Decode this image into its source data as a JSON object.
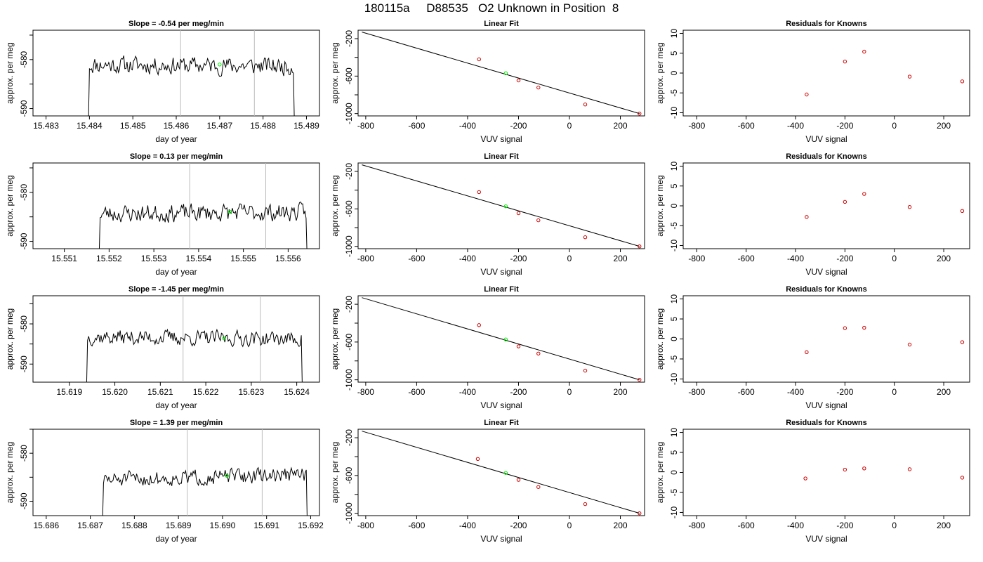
{
  "title": "180115a     D88535   O2 Unknown in Position  8",
  "colors": {
    "trace": "#000000",
    "unknown_point": "#00ee00",
    "known_point": "#cc0000",
    "session_marker": "#bbbbbb",
    "axis": "#000000"
  },
  "chart_data": [
    {
      "type": "line",
      "row": 0,
      "title": "Slope =  -0.54  per meg/min",
      "xlabel": "day of year",
      "ylabel": "approx. per meg",
      "xlim": [
        15.4827,
        15.4893
      ],
      "ylim": [
        -591.5,
        -574.0
      ],
      "xticks": [
        "15.483",
        "15.484",
        "15.485",
        "15.486",
        "15.487",
        "15.488",
        "15.489"
      ],
      "yticks": [
        "-580",
        "-590"
      ],
      "ytick_values": [
        -580,
        -590
      ],
      "trace_start": 15.484,
      "trace_end": 15.4887,
      "trace_level": -581.2,
      "trace_noise": 1.6,
      "trace_trend": -0.3,
      "seed": 11,
      "vlines": [
        15.4861,
        15.4878
      ],
      "unknown_point": {
        "x": 15.487,
        "y": -581.0
      }
    },
    {
      "type": "line",
      "row": 1,
      "title": "Slope =  0.13  per meg/min",
      "xlabel": "day of year",
      "ylabel": "approx. per meg",
      "xlim": [
        15.5503,
        15.5567
      ],
      "ylim": [
        -591.5,
        -574.0
      ],
      "xticks": [
        "15.551",
        "15.552",
        "15.553",
        "15.554",
        "15.555",
        "15.556"
      ],
      "yticks": [
        "-580",
        "-590"
      ],
      "ytick_values": [
        -580,
        -590
      ],
      "trace_start": 15.5518,
      "trace_end": 15.5564,
      "trace_level": -584.2,
      "trace_noise": 1.6,
      "trace_trend": 0.3,
      "seed": 23,
      "vlines": [
        15.5538,
        15.5555
      ],
      "unknown_point": {
        "x": 15.5547,
        "y": -584.0
      }
    },
    {
      "type": "line",
      "row": 2,
      "title": "Slope =  -1.45  per meg/min",
      "xlabel": "day of year",
      "ylabel": "approx. per meg",
      "xlim": [
        15.6182,
        15.6245
      ],
      "ylim": [
        -594.5,
        -573.0
      ],
      "xticks": [
        "15.619",
        "15.620",
        "15.621",
        "15.622",
        "15.623",
        "15.624"
      ],
      "yticks": [
        "-580",
        "-590"
      ],
      "ytick_values": [
        -580,
        -590
      ],
      "trace_start": 15.6194,
      "trace_end": 15.6241,
      "trace_level": -583.5,
      "trace_noise": 1.7,
      "trace_trend": -0.5,
      "seed": 37,
      "vlines": [
        15.6215,
        15.6232
      ],
      "unknown_point": {
        "x": 15.6224,
        "y": -583.6
      }
    },
    {
      "type": "line",
      "row": 3,
      "title": "Slope =  1.39  per meg/min",
      "xlabel": "day of year",
      "ylabel": "approx. per meg",
      "xlim": [
        15.6857,
        15.6922
      ],
      "ylim": [
        -593.0,
        -575.0
      ],
      "xticks": [
        "15.686",
        "15.687",
        "15.688",
        "15.689",
        "15.690",
        "15.691",
        "15.692"
      ],
      "yticks": [
        "-580",
        "-590"
      ],
      "ytick_values": [
        -580,
        -590
      ],
      "trace_start": 15.6873,
      "trace_end": 15.6919,
      "trace_level": -585.0,
      "trace_noise": 1.4,
      "trace_trend": 1.2,
      "seed": 51,
      "vlines": [
        15.6892,
        15.6909
      ],
      "unknown_point": {
        "x": 15.6901,
        "y": -584.7
      }
    },
    {
      "type": "scatter",
      "row": 0,
      "title": "Linear Fit",
      "xlabel": "VUV signal",
      "ylabel": "approx. per meg",
      "xlim": [
        -830,
        295
      ],
      "ylim": [
        -1025,
        -110
      ],
      "xticks": [
        "-800",
        "-600",
        "-400",
        "-200",
        "0",
        "200"
      ],
      "xtick_values": [
        -800,
        -600,
        -400,
        -200,
        0,
        200
      ],
      "yticks": [
        "-200",
        "-600",
        "-1000"
      ],
      "ytick_values": [
        -200,
        -600,
        -1000
      ],
      "fit_line": {
        "x": [
          -815,
          275
        ],
        "y": [
          -130,
          -1000
        ]
      },
      "known_points": {
        "x": [
          -355,
          -200,
          -122,
          62,
          275
        ],
        "y": [
          -421,
          -646,
          -722,
          -903,
          -1000
        ]
      },
      "unknown_point": {
        "x": -250,
        "y": -569
      }
    },
    {
      "type": "scatter",
      "row": 1,
      "title": "Linear Fit",
      "xlabel": "VUV signal",
      "ylabel": "approx. per meg",
      "xlim": [
        -830,
        295
      ],
      "ylim": [
        -1025,
        -110
      ],
      "xticks": [
        "-800",
        "-600",
        "-400",
        "-200",
        "0",
        "200"
      ],
      "xtick_values": [
        -800,
        -600,
        -400,
        -200,
        0,
        200
      ],
      "yticks": [
        "-200",
        "-600",
        "-1000"
      ],
      "ytick_values": [
        -200,
        -600,
        -1000
      ],
      "fit_line": {
        "x": [
          -815,
          275
        ],
        "y": [
          -130,
          -1000
        ]
      },
      "known_points": {
        "x": [
          -355,
          -200,
          -122,
          62,
          275
        ],
        "y": [
          -421,
          -646,
          -722,
          -903,
          -1000
        ]
      },
      "unknown_point": {
        "x": -250,
        "y": -573
      }
    },
    {
      "type": "scatter",
      "row": 2,
      "title": "Linear Fit",
      "xlabel": "VUV signal",
      "ylabel": "approx. per meg",
      "xlim": [
        -830,
        295
      ],
      "ylim": [
        -1025,
        -110
      ],
      "xticks": [
        "-800",
        "-600",
        "-400",
        "-200",
        "0",
        "200"
      ],
      "xtick_values": [
        -800,
        -600,
        -400,
        -200,
        0,
        200
      ],
      "yticks": [
        "-200",
        "-600",
        "-1000"
      ],
      "ytick_values": [
        -200,
        -600,
        -1000
      ],
      "fit_line": {
        "x": [
          -815,
          275
        ],
        "y": [
          -130,
          -1000
        ]
      },
      "known_points": {
        "x": [
          -355,
          -200,
          -122,
          62,
          275
        ],
        "y": [
          -421,
          -646,
          -722,
          -903,
          -1000
        ]
      },
      "unknown_point": {
        "x": -250,
        "y": -573
      }
    },
    {
      "type": "scatter",
      "row": 3,
      "title": "Linear Fit",
      "xlabel": "VUV signal",
      "ylabel": "approx. per meg",
      "xlim": [
        -830,
        295
      ],
      "ylim": [
        -1025,
        -110
      ],
      "xticks": [
        "-800",
        "-600",
        "-400",
        "-200",
        "0",
        "200"
      ],
      "xtick_values": [
        -800,
        -600,
        -400,
        -200,
        0,
        200
      ],
      "yticks": [
        "-200",
        "-600",
        "-1000"
      ],
      "ytick_values": [
        -200,
        -600,
        -1000
      ],
      "fit_line": {
        "x": [
          -815,
          275
        ],
        "y": [
          -130,
          -1000
        ]
      },
      "known_points": {
        "x": [
          -360,
          -200,
          -122,
          62,
          275
        ],
        "y": [
          -425,
          -646,
          -722,
          -903,
          -1000
        ]
      },
      "unknown_point": {
        "x": -250,
        "y": -573
      }
    },
    {
      "type": "scatter",
      "row": 0,
      "title": "Residuals for Knowns",
      "xlabel": "VUV signal",
      "ylabel": "approx. per meg",
      "xlim": [
        -855,
        305
      ],
      "ylim": [
        -10.8,
        10.8
      ],
      "xticks": [
        "-800",
        "-600",
        "-400",
        "-200",
        "0",
        "200"
      ],
      "xtick_values": [
        -800,
        -600,
        -400,
        -200,
        0,
        200
      ],
      "yticks": [
        "-10",
        "-5",
        "0",
        "5",
        "10"
      ],
      "ytick_values": [
        -10,
        -5,
        0,
        5,
        10
      ],
      "points": {
        "x": [
          -355,
          -200,
          -122,
          62,
          275
        ],
        "y": [
          -5.4,
          2.9,
          5.4,
          -0.9,
          -2.1
        ]
      }
    },
    {
      "type": "scatter",
      "row": 1,
      "title": "Residuals for Knowns",
      "xlabel": "VUV signal",
      "ylabel": "approx. per meg",
      "xlim": [
        -855,
        305
      ],
      "ylim": [
        -10.8,
        10.8
      ],
      "xticks": [
        "-800",
        "-600",
        "-400",
        "-200",
        "0",
        "200"
      ],
      "xtick_values": [
        -800,
        -600,
        -400,
        -200,
        0,
        200
      ],
      "yticks": [
        "-10",
        "-5",
        "0",
        "5",
        "10"
      ],
      "ytick_values": [
        -10,
        -5,
        0,
        5,
        10
      ],
      "points": {
        "x": [
          -355,
          -200,
          -122,
          62,
          275
        ],
        "y": [
          -2.8,
          1.0,
          3.0,
          -0.3,
          -1.3
        ]
      }
    },
    {
      "type": "scatter",
      "row": 2,
      "title": "Residuals for Knowns",
      "xlabel": "VUV signal",
      "ylabel": "approx. per meg",
      "xlim": [
        -855,
        305
      ],
      "ylim": [
        -10.8,
        10.8
      ],
      "xticks": [
        "-800",
        "-600",
        "-400",
        "-200",
        "0",
        "200"
      ],
      "xtick_values": [
        -800,
        -600,
        -400,
        -200,
        0,
        200
      ],
      "yticks": [
        "-10",
        "-5",
        "0",
        "5",
        "10"
      ],
      "ytick_values": [
        -10,
        -5,
        0,
        5,
        10
      ],
      "points": {
        "x": [
          -355,
          -200,
          -122,
          62,
          275
        ],
        "y": [
          -3.3,
          2.7,
          2.8,
          -1.4,
          -0.8
        ]
      }
    },
    {
      "type": "scatter",
      "row": 3,
      "title": "Residuals for Knowns",
      "xlabel": "VUV signal",
      "ylabel": "approx. per meg",
      "xlim": [
        -855,
        305
      ],
      "ylim": [
        -10.8,
        10.8
      ],
      "xticks": [
        "-800",
        "-600",
        "-400",
        "-200",
        "0",
        "200"
      ],
      "xtick_values": [
        -800,
        -600,
        -400,
        -200,
        0,
        200
      ],
      "yticks": [
        "-10",
        "-5",
        "0",
        "5",
        "10"
      ],
      "ytick_values": [
        -10,
        -5,
        0,
        5,
        10
      ],
      "points": {
        "x": [
          -360,
          -200,
          -122,
          62,
          275
        ],
        "y": [
          -1.5,
          0.7,
          1.0,
          0.8,
          -1.3
        ]
      }
    }
  ]
}
